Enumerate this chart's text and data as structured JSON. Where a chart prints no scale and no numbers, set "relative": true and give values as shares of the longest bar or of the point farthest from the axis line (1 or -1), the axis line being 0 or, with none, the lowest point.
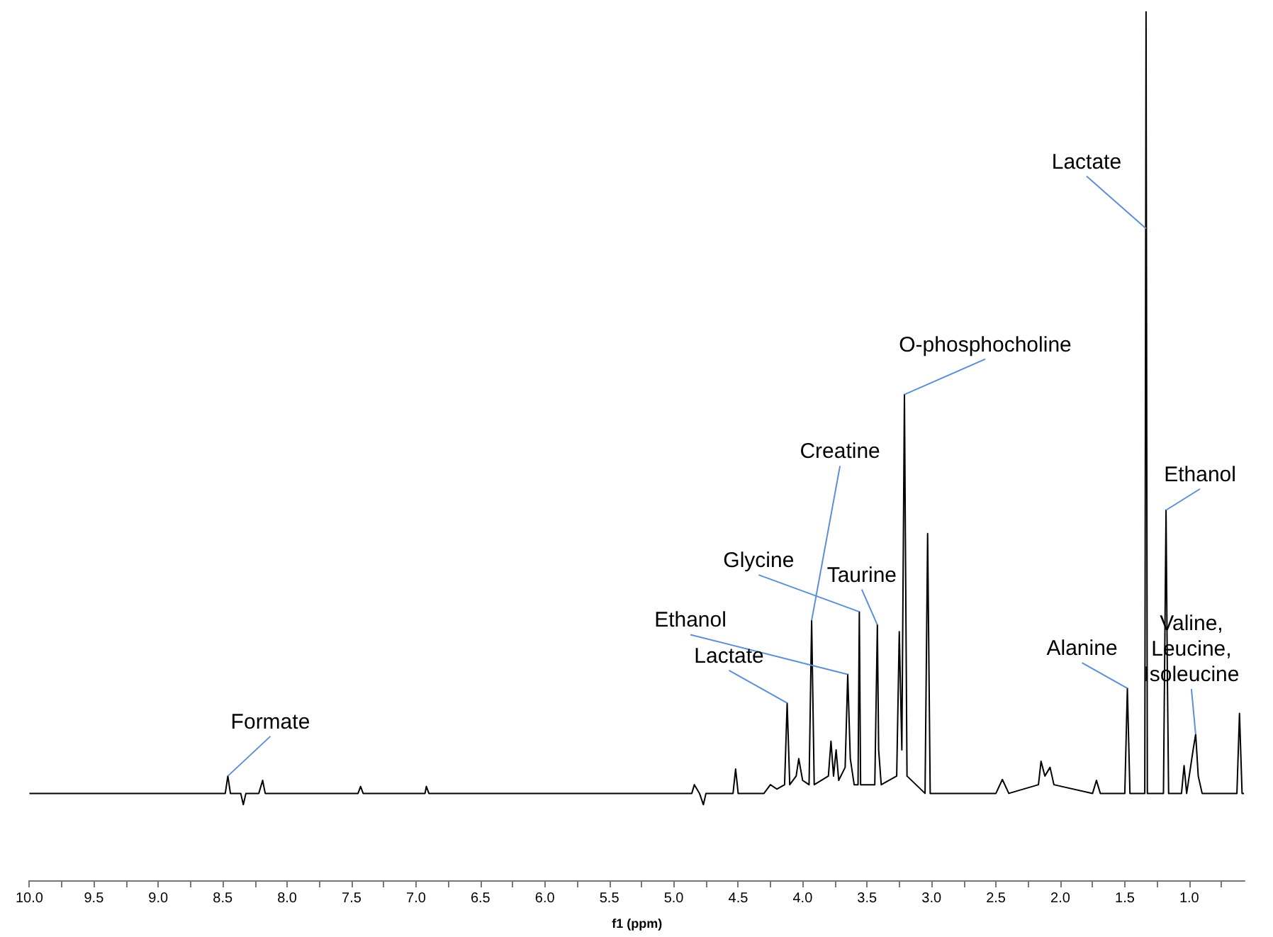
{
  "chart_data": {
    "type": "line",
    "xlabel": "f1 (ppm)",
    "relative": true,
    "grid": false,
    "marker": "none",
    "line_style": "solid",
    "xlim": [
      10.0,
      0.57
    ],
    "xticks": [
      {
        "value": 10,
        "label": "10.0"
      },
      {
        "value": 9.75,
        "label": null
      },
      {
        "value": 9.5,
        "label": "9.5"
      },
      {
        "value": 9.25,
        "label": null
      },
      {
        "value": 9,
        "label": "9.0"
      },
      {
        "value": 8.75,
        "label": null
      },
      {
        "value": 8.5,
        "label": "8.5"
      },
      {
        "value": 8.25,
        "label": null
      },
      {
        "value": 8,
        "label": "8.0"
      },
      {
        "value": 7.75,
        "label": null
      },
      {
        "value": 7.5,
        "label": "7.5"
      },
      {
        "value": 7.25,
        "label": null
      },
      {
        "value": 7,
        "label": "7.0"
      },
      {
        "value": 6.75,
        "label": null
      },
      {
        "value": 6.5,
        "label": "6.5"
      },
      {
        "value": 6.25,
        "label": null
      },
      {
        "value": 6,
        "label": "6.0"
      },
      {
        "value": 5.75,
        "label": null
      },
      {
        "value": 5.5,
        "label": "5.5"
      },
      {
        "value": 5.25,
        "label": null
      },
      {
        "value": 5,
        "label": "5.0"
      },
      {
        "value": 4.75,
        "label": null
      },
      {
        "value": 4.5,
        "label": "4.5"
      },
      {
        "value": 4.25,
        "label": null
      },
      {
        "value": 4,
        "label": "4.0"
      },
      {
        "value": 3.75,
        "label": null
      },
      {
        "value": 3.5,
        "label": "3.5"
      },
      {
        "value": 3.25,
        "label": null
      },
      {
        "value": 3,
        "label": "3.0"
      },
      {
        "value": 2.75,
        "label": null
      },
      {
        "value": 2.5,
        "label": "2.5"
      },
      {
        "value": 2.25,
        "label": null
      },
      {
        "value": 2,
        "label": "2.0"
      },
      {
        "value": 1.75,
        "label": null
      },
      {
        "value": 1.5,
        "label": "1.5"
      },
      {
        "value": 1.25,
        "label": null
      },
      {
        "value": 1,
        "label": "1.0"
      },
      {
        "value": 0.75,
        "label": null
      }
    ],
    "series": [
      {
        "color": "#000000",
        "x": [
          10.0,
          8.48,
          8.46,
          8.44,
          8.36,
          8.34,
          8.32,
          8.22,
          8.19,
          8.17,
          7.45,
          7.43,
          7.41,
          6.93,
          6.92,
          6.9,
          4.86,
          4.84,
          4.8,
          4.77,
          4.75,
          4.54,
          4.52,
          4.5,
          4.3,
          4.25,
          4.2,
          4.14,
          4.12,
          4.1,
          4.05,
          4.03,
          4.0,
          3.95,
          3.93,
          3.91,
          3.8,
          3.78,
          3.76,
          3.74,
          3.72,
          3.67,
          3.65,
          3.63,
          3.6,
          3.57,
          3.56,
          3.55,
          3.44,
          3.42,
          3.41,
          3.39,
          3.27,
          3.25,
          3.23,
          3.21,
          3.19,
          3.05,
          3.03,
          3.01,
          2.5,
          2.45,
          2.4,
          2.17,
          2.15,
          2.12,
          2.08,
          2.05,
          1.75,
          1.72,
          1.69,
          1.5,
          1.48,
          1.46,
          1.345,
          1.335,
          1.325,
          1.2,
          1.18,
          1.17,
          1.16,
          1.06,
          1.04,
          1.02,
          0.97,
          0.95,
          0.93,
          0.9,
          0.63,
          0.61,
          0.59,
          0.575
        ],
        "values": [
          0.1,
          0.1,
          0.12,
          0.1,
          0.1,
          0.087,
          0.1,
          0.1,
          0.115,
          0.1,
          0.1,
          0.108,
          0.1,
          0.1,
          0.108,
          0.1,
          0.1,
          0.11,
          0.1,
          0.087,
          0.1,
          0.1,
          0.128,
          0.1,
          0.1,
          0.11,
          0.105,
          0.11,
          0.204,
          0.11,
          0.12,
          0.14,
          0.115,
          0.11,
          0.299,
          0.11,
          0.12,
          0.16,
          0.12,
          0.15,
          0.115,
          0.13,
          0.237,
          0.14,
          0.11,
          0.11,
          0.309,
          0.11,
          0.11,
          0.294,
          0.15,
          0.11,
          0.12,
          0.286,
          0.15,
          0.559,
          0.12,
          0.1,
          0.399,
          0.1,
          0.1,
          0.116,
          0.1,
          0.11,
          0.137,
          0.12,
          0.13,
          0.11,
          0.1,
          0.115,
          0.1,
          0.1,
          0.221,
          0.1,
          0.1,
          1.0,
          0.1,
          0.1,
          0.426,
          0.242,
          0.1,
          0.1,
          0.132,
          0.1,
          0.15,
          0.168,
          0.12,
          0.1,
          0.1,
          0.192,
          0.1,
          0.1
        ]
      }
    ],
    "annotations": [
      {
        "text": "Formate",
        "x": 8.46,
        "y": 0.12
      },
      {
        "text": "Lactate",
        "x": 4.12,
        "y": 0.204
      },
      {
        "text": "Ethanol",
        "x": 3.65,
        "y": 0.237
      },
      {
        "text": "Glycine",
        "x": 3.56,
        "y": 0.309
      },
      {
        "text": "Creatine",
        "x": 3.93,
        "y": 0.299
      },
      {
        "text": "Taurine",
        "x": 3.42,
        "y": 0.294
      },
      {
        "text": "O-phosphocholine",
        "x": 3.21,
        "y": 0.559
      },
      {
        "text": "Alanine",
        "x": 1.48,
        "y": 0.221
      },
      {
        "text": "Lactate",
        "x": 1.335,
        "y": 0.75
      },
      {
        "text": "Ethanol",
        "x": 1.18,
        "y": 0.426
      },
      {
        "text": "Valine,\nLeucine,\nIsoleucine",
        "x": 0.95,
        "y": 0.168
      }
    ]
  }
}
